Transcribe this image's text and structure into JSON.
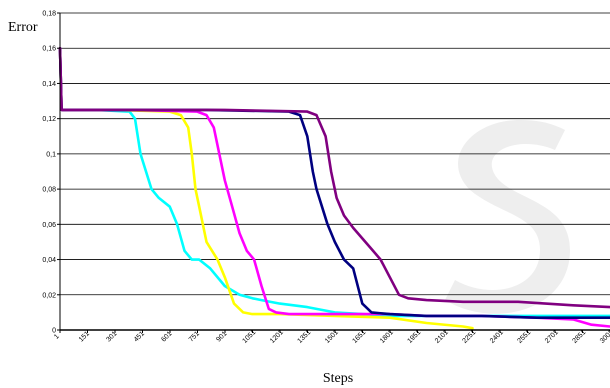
{
  "chart_data": {
    "type": "line",
    "title": "",
    "xlabel": "Steps",
    "ylabel": "Error",
    "ylim": [
      0,
      0.18
    ],
    "xlim": [
      1,
      3001
    ],
    "yticks": [
      0,
      0.02,
      0.04,
      0.06,
      0.08,
      0.1,
      0.12,
      0.14,
      0.16,
      0.18
    ],
    "ytick_labels": [
      "0",
      "0,02",
      "0,04",
      "0,06",
      "0,08",
      "0,1",
      "0,12",
      "0,14",
      "0,16",
      "0,18"
    ],
    "xticks": [
      1,
      151,
      301,
      451,
      601,
      751,
      901,
      1051,
      1201,
      1351,
      1501,
      1651,
      1801,
      1951,
      2101,
      2251,
      2401,
      2551,
      2701,
      2851,
      3001
    ],
    "xtick_labels": [
      "1",
      "151",
      "301",
      "451",
      "601",
      "751",
      "901",
      "1051",
      "1201",
      "1351",
      "1501",
      "1651",
      "1801",
      "1951",
      "2101",
      "2251",
      "2401",
      "2551",
      "2701",
      "2851",
      "3001"
    ],
    "grid": "horizontal",
    "legend": "none",
    "series": [
      {
        "color": "#00ffff",
        "x": [
          1,
          10,
          200,
          380,
          410,
          440,
          470,
          500,
          540,
          600,
          640,
          680,
          720,
          760,
          820,
          900,
          980,
          1051,
          1100,
          1200,
          1350,
          1500,
          1650,
          1800,
          2000,
          2300,
          2600,
          2800,
          3001
        ],
        "y": [
          0.16,
          0.125,
          0.125,
          0.124,
          0.12,
          0.1,
          0.09,
          0.08,
          0.075,
          0.07,
          0.06,
          0.045,
          0.04,
          0.04,
          0.035,
          0.025,
          0.02,
          0.018,
          0.017,
          0.015,
          0.013,
          0.01,
          0.009,
          0.008,
          0.008,
          0.008,
          0.008,
          0.008,
          0.008
        ]
      },
      {
        "color": "#ffff00",
        "x": [
          1,
          10,
          300,
          600,
          660,
          700,
          720,
          740,
          760,
          800,
          860,
          900,
          950,
          1000,
          1050,
          1200,
          1500,
          1800,
          2000,
          2200,
          2251
        ],
        "y": [
          0.16,
          0.125,
          0.125,
          0.124,
          0.122,
          0.115,
          0.1,
          0.08,
          0.07,
          0.05,
          0.04,
          0.03,
          0.015,
          0.01,
          0.009,
          0.009,
          0.008,
          0.007,
          0.004,
          0.002,
          0.001
        ]
      },
      {
        "color": "#ff00ff",
        "x": [
          1,
          10,
          400,
          750,
          800,
          840,
          870,
          900,
          940,
          980,
          1020,
          1060,
          1100,
          1140,
          1180,
          1250,
          1400,
          1600,
          1800,
          2000,
          2300,
          2600,
          2800,
          2900,
          3001
        ],
        "y": [
          0.16,
          0.125,
          0.125,
          0.124,
          0.122,
          0.115,
          0.1,
          0.085,
          0.07,
          0.055,
          0.045,
          0.04,
          0.025,
          0.012,
          0.01,
          0.009,
          0.009,
          0.009,
          0.009,
          0.008,
          0.008,
          0.007,
          0.006,
          0.003,
          0.002
        ]
      },
      {
        "color": "#000080",
        "x": [
          1,
          10,
          800,
          1250,
          1310,
          1350,
          1380,
          1400,
          1430,
          1460,
          1500,
          1550,
          1600,
          1650,
          1700,
          1800,
          2000,
          2300,
          2600,
          2900,
          3001
        ],
        "y": [
          0.16,
          0.125,
          0.125,
          0.124,
          0.122,
          0.11,
          0.09,
          0.08,
          0.07,
          0.06,
          0.05,
          0.04,
          0.035,
          0.015,
          0.01,
          0.009,
          0.008,
          0.008,
          0.007,
          0.007,
          0.007
        ]
      },
      {
        "color": "#800080",
        "x": [
          1,
          10,
          900,
          1350,
          1400,
          1450,
          1480,
          1510,
          1550,
          1600,
          1650,
          1700,
          1750,
          1800,
          1850,
          1900,
          2000,
          2200,
          2500,
          2800,
          3001
        ],
        "y": [
          0.16,
          0.125,
          0.125,
          0.124,
          0.122,
          0.11,
          0.09,
          0.075,
          0.065,
          0.058,
          0.052,
          0.046,
          0.04,
          0.03,
          0.02,
          0.018,
          0.017,
          0.016,
          0.016,
          0.014,
          0.013
        ]
      }
    ]
  }
}
